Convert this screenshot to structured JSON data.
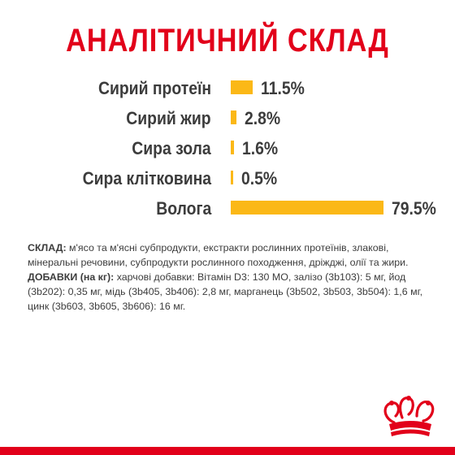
{
  "title": "АНАЛІТИЧНИЙ СКЛАД",
  "colors": {
    "accent": "#e2001a",
    "bar": "#fbb817",
    "text": "#3c3c3c"
  },
  "analysis": {
    "unit": "%",
    "items": [
      {
        "label": "Сирий протеїн",
        "value_text": "11.5%",
        "value": 11.5
      },
      {
        "label": "Сирий жир",
        "value_text": "2.8%",
        "value": 2.8
      },
      {
        "label": "Сира зола",
        "value_text": "1.6%",
        "value": 1.6
      },
      {
        "label": "Сира клітковина",
        "value_text": "0.5%",
        "value": 0.5
      },
      {
        "label": "Волога",
        "value_text": "79.5%",
        "value": 79.5
      }
    ]
  },
  "composition": {
    "heading": "СКЛАД:",
    "text": " м'ясо та м'ясні субпродукти, екстракти рослинних протеїнів, злакові, мінеральні речовини, субпродукти рослинного походження, дріжджі, олії та жири."
  },
  "additives": {
    "heading": "ДОБАВКИ (на кг):",
    "text": " харчові добавки: Вітамін D3: 130 МО, залізо (3b103): 5 мг, йод (3b202): 0,35 мг, мідь (3b405, 3b406): 2,8 мг, марганець (3b502, 3b503, 3b504): 1,6 мг, цинк (3b603, 3b605, 3b606): 16 мг."
  },
  "logo": {
    "icon": "royal-crown-icon"
  }
}
